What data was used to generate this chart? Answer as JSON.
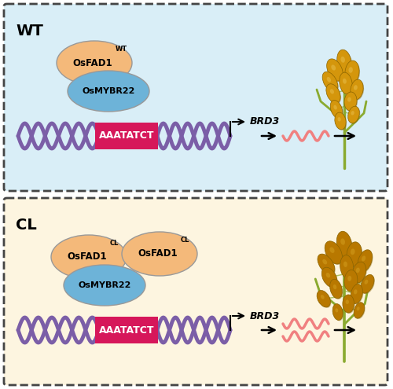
{
  "fig_width": 5.0,
  "fig_height": 4.95,
  "dpi": 100,
  "bg_color": "#ffffff",
  "panel_wt_bg": "#d9eef7",
  "panel_cl_bg": "#fdf5e0",
  "panel_border_color": "#444444",
  "wt_label": "WT",
  "cl_label": "CL",
  "dna_color": "#7b5ea7",
  "box_color": "#d6175a",
  "box_text": "AAATATCT",
  "box_text_color": "#ffffff",
  "osfad1_color": "#f4b97a",
  "osmybr22_color": "#6db3d8",
  "arrow_color": "#000000",
  "wavy_color": "#f08080",
  "osfad1_wt_label": "OsFAD1",
  "osfad1_wt_sup": "WT",
  "osfad1_cl_label": "OsFAD1",
  "osfad1_cl_sup": "CL",
  "osmybr22_label": "OsMYBR22",
  "brd3_label": "BRD3"
}
